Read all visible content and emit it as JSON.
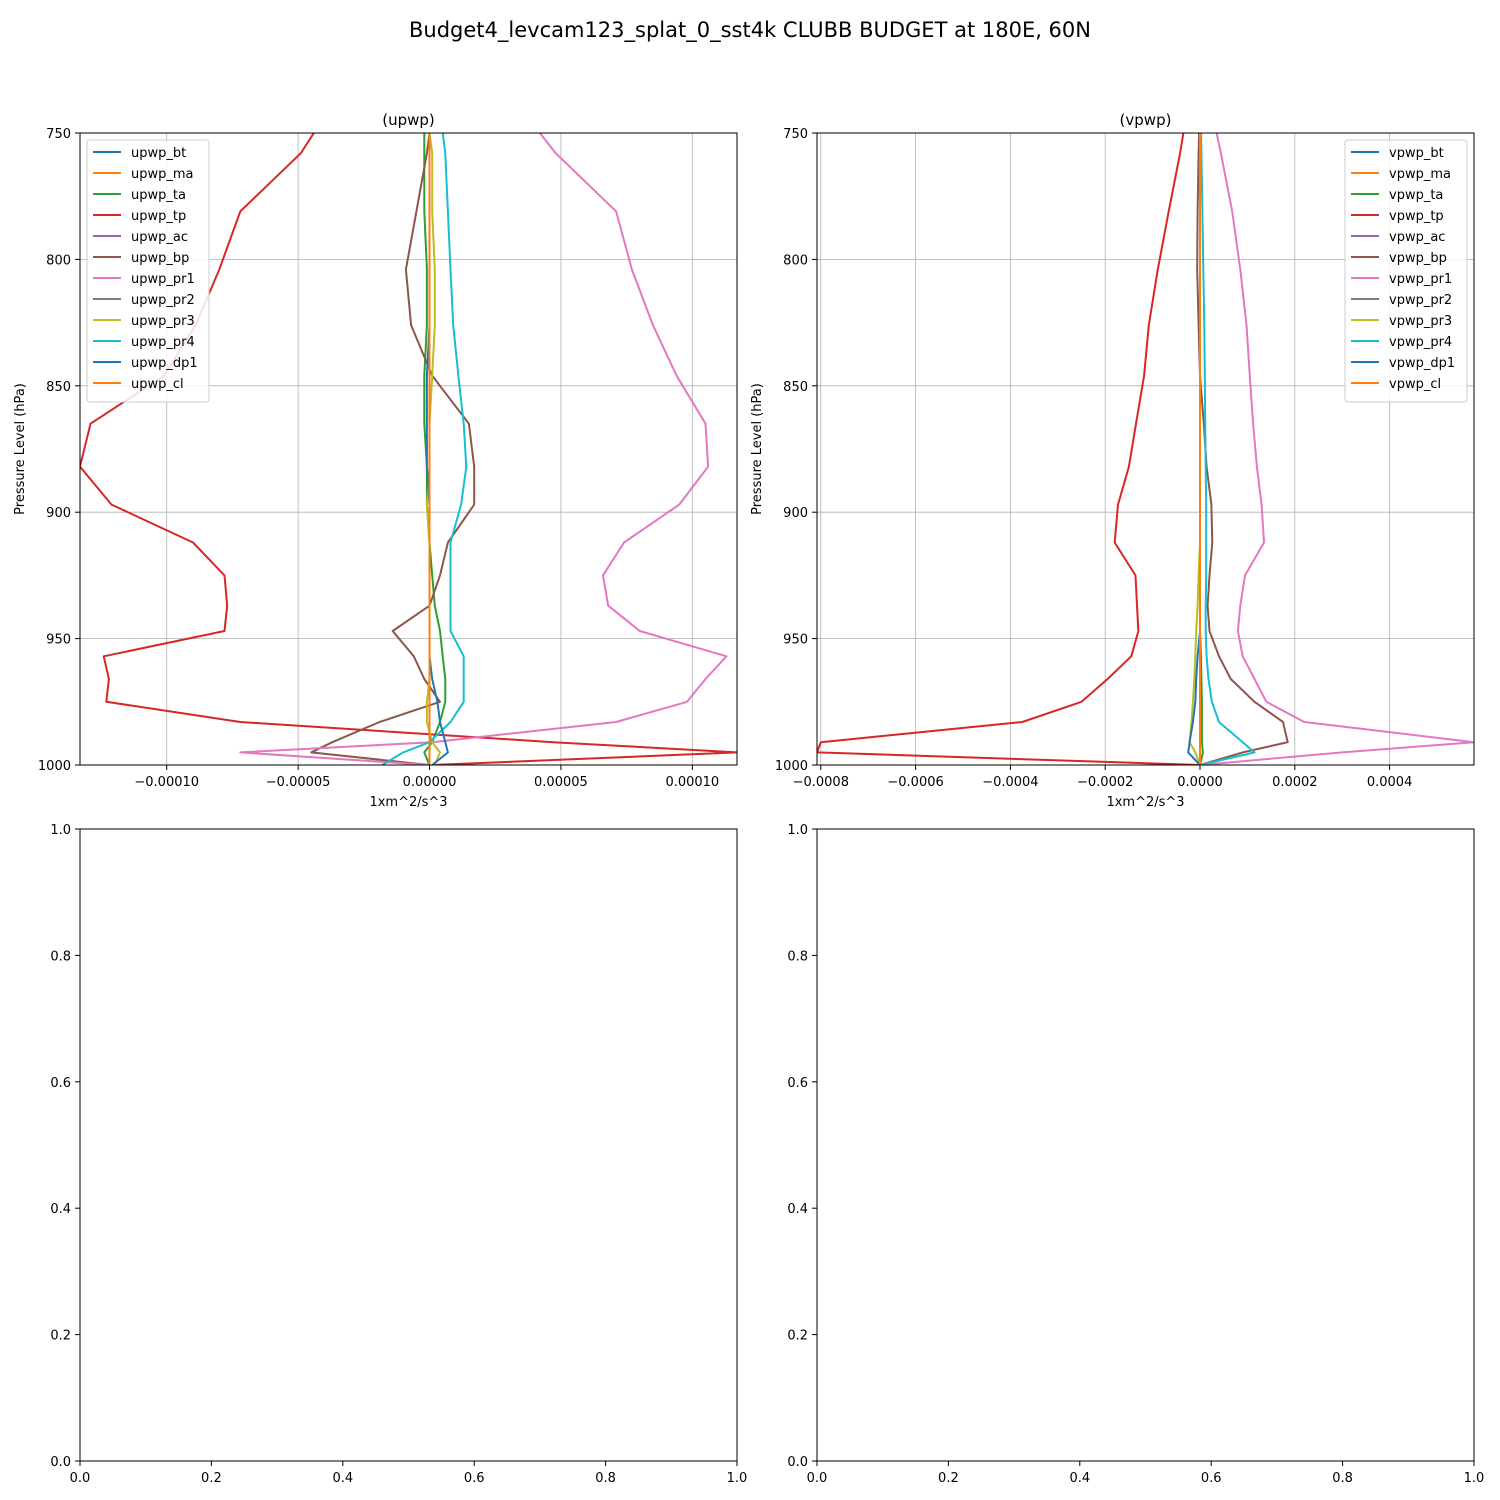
{
  "figure": {
    "suptitle": "Budget4_levcam123_splat_0_sst4k CLUBB BUDGET at 180E, 60N"
  },
  "chart_data": [
    {
      "type": "line",
      "title": "(upwp)",
      "xlabel": "1xm^2/s^3",
      "ylabel": "Pressure Level (hPa)",
      "xlim": [
        -0.000133,
        0.000117
      ],
      "ylim": [
        1000,
        750
      ],
      "xticks": [
        -0.0001,
        -5e-05,
        0,
        5e-05,
        0.0001
      ],
      "xtick_labels": [
        "−0.00010",
        "−0.00005",
        "0.00000",
        "0.00005",
        "0.00010"
      ],
      "yticks": [
        750,
        800,
        850,
        900,
        950,
        1000
      ],
      "ytick_labels": [
        "750",
        "800",
        "850",
        "900",
        "950",
        "1000"
      ],
      "grid": true,
      "legend_position": "upper-left",
      "levels": [
        750,
        758,
        781,
        804,
        826,
        846,
        865,
        882,
        897,
        912,
        925,
        937,
        947,
        957,
        966,
        975,
        983,
        991,
        995,
        1000
      ],
      "series": [
        {
          "name": "upwp_bt",
          "color": "#1f77b4",
          "values": [
            0,
            0,
            0,
            0,
            0,
            0,
            0,
            0,
            0,
            0,
            0,
            0,
            0,
            0,
            0,
            0,
            0,
            0,
            0,
            0
          ]
        },
        {
          "name": "upwp_ma",
          "color": "#ff7f0e",
          "values": [
            0,
            0,
            0,
            0,
            0,
            0,
            0,
            0,
            0,
            0,
            0,
            0,
            0,
            0,
            0,
            0,
            0,
            0,
            0,
            0
          ]
        },
        {
          "name": "upwp_ta",
          "color": "#2ca02c",
          "values": [
            -2e-06,
            -2e-06,
            -2e-06,
            -1e-06,
            -1e-06,
            -2e-06,
            -2e-06,
            -1e-06,
            -1e-06,
            0,
            1e-06,
            2e-06,
            4e-06,
            5e-06,
            6e-06,
            6e-06,
            4e-06,
            1e-06,
            -2e-06,
            0
          ]
        },
        {
          "name": "upwp_tp",
          "color": "#d62728",
          "values": [
            -4.4e-05,
            -4.9e-05,
            -7.2e-05,
            -8e-05,
            -8.9e-05,
            -0.000101,
            -0.000129,
            -0.000133,
            -0.000121,
            -9e-05,
            -7.8e-05,
            -7.7e-05,
            -7.8e-05,
            -0.000124,
            -0.000122,
            -0.000123,
            -7.2e-05,
            4.7e-05,
            0.000117,
            1e-06
          ]
        },
        {
          "name": "upwp_ac",
          "color": "#9467bd",
          "values": [
            0,
            0,
            0,
            0,
            0,
            0,
            0,
            0,
            0,
            0,
            0,
            0,
            0,
            0,
            0,
            0,
            0,
            0,
            0,
            0
          ]
        },
        {
          "name": "upwp_bp",
          "color": "#8c564b",
          "values": [
            0,
            -1e-06,
            -5e-06,
            -9e-06,
            -7e-06,
            1e-06,
            1.5e-05,
            1.7e-05,
            1.7e-05,
            7e-06,
            4e-06,
            0,
            -1.4e-05,
            -6e-06,
            -2e-06,
            4e-06,
            -1.9e-05,
            -3.7e-05,
            -4.5e-05,
            0
          ]
        },
        {
          "name": "upwp_pr1",
          "color": "#e377c2",
          "values": [
            4.2e-05,
            4.8e-05,
            7.1e-05,
            7.7e-05,
            8.5e-05,
            9.4e-05,
            0.000105,
            0.000106,
            9.5e-05,
            7.4e-05,
            6.6e-05,
            6.8e-05,
            8e-05,
            0.000113,
            0.000105,
            9.8e-05,
            7.1e-05,
            1e-06,
            -7.2e-05,
            0
          ]
        },
        {
          "name": "upwp_pr2",
          "color": "#7f7f7f",
          "values": [
            0,
            0,
            0,
            0,
            0,
            0,
            0,
            0,
            0,
            0,
            0,
            0,
            0,
            0,
            0,
            0,
            0,
            0,
            0,
            0
          ]
        },
        {
          "name": "upwp_pr3",
          "color": "#bcbd22",
          "values": [
            0,
            1e-06,
            1e-06,
            2e-06,
            2e-06,
            1e-06,
            0,
            0,
            -1e-06,
            0,
            0,
            0,
            0,
            0,
            0,
            -1e-06,
            -1e-06,
            1e-06,
            4e-06,
            2e-06
          ]
        },
        {
          "name": "upwp_pr4",
          "color": "#17becf",
          "values": [
            5e-06,
            6e-06,
            7e-06,
            8e-06,
            9e-06,
            1.1e-05,
            1.3e-05,
            1.4e-05,
            1.2e-05,
            8e-06,
            8e-06,
            8e-06,
            8e-06,
            1.3e-05,
            1.3e-05,
            1.3e-05,
            8e-06,
            0,
            -1e-05,
            -1.8e-05
          ]
        },
        {
          "name": "upwp_dp1",
          "color": "#1f77b4",
          "values": [
            0,
            0,
            0,
            0,
            0,
            -1e-06,
            -1e-06,
            -1e-06,
            0,
            0,
            0,
            0,
            0,
            0,
            1e-06,
            3e-06,
            4e-06,
            6e-06,
            7e-06,
            1e-06
          ]
        },
        {
          "name": "upwp_cl",
          "color": "#ff7f0e",
          "values": [
            0,
            0,
            0,
            0,
            0,
            0,
            0,
            0,
            0,
            0,
            0,
            0,
            0,
            0,
            0,
            0,
            0,
            0,
            0,
            0
          ]
        }
      ]
    },
    {
      "type": "line",
      "title": "(vpwp)",
      "xlabel": "1xm^2/s^3",
      "ylabel": "Pressure Level (hPa)",
      "xlim": [
        -0.000808,
        0.000578
      ],
      "ylim": [
        1000,
        750
      ],
      "xticks": [
        -0.0008,
        -0.0006,
        -0.0004,
        -0.0002,
        0,
        0.0002,
        0.0004
      ],
      "xtick_labels": [
        "−0.0008",
        "−0.0006",
        "−0.0004",
        "−0.0002",
        "0.0000",
        "0.0002",
        "0.0004"
      ],
      "yticks": [
        750,
        800,
        850,
        900,
        950,
        1000
      ],
      "ytick_labels": [
        "750",
        "800",
        "850",
        "900",
        "950",
        "1000"
      ],
      "grid": true,
      "legend_position": "upper-right",
      "levels": [
        750,
        758,
        781,
        804,
        826,
        846,
        865,
        882,
        897,
        912,
        925,
        937,
        947,
        957,
        966,
        975,
        983,
        991,
        995,
        1000
      ],
      "series": [
        {
          "name": "vpwp_bt",
          "color": "#1f77b4",
          "values": [
            0,
            0,
            0,
            0,
            0,
            0,
            0,
            0,
            0,
            0,
            0,
            0,
            0,
            0,
            0,
            0,
            0,
            0,
            0,
            0
          ]
        },
        {
          "name": "vpwp_ma",
          "color": "#ff7f0e",
          "values": [
            0,
            0,
            0,
            0,
            0,
            0,
            0,
            0,
            0,
            0,
            0,
            0,
            0,
            0,
            0,
            0,
            0,
            0,
            0,
            0
          ]
        },
        {
          "name": "vpwp_ta",
          "color": "#2ca02c",
          "values": [
            0,
            0,
            0,
            0,
            0,
            0,
            0,
            0,
            0,
            0,
            0,
            0,
            0,
            2e-06,
            3e-06,
            4e-06,
            4e-06,
            4e-06,
            6e-06,
            0
          ]
        },
        {
          "name": "vpwp_tp",
          "color": "#d62728",
          "values": [
            -3.5e-05,
            -4.2e-05,
            -6.6e-05,
            -8.9e-05,
            -0.000108,
            -0.000118,
            -0.000135,
            -0.00015,
            -0.000173,
            -0.00018,
            -0.000136,
            -0.000133,
            -0.00013,
            -0.000145,
            -0.000195,
            -0.00025,
            -0.000375,
            -0.0008,
            -0.000808,
            0
          ]
        },
        {
          "name": "vpwp_ac",
          "color": "#9467bd",
          "values": [
            0,
            0,
            0,
            0,
            0,
            0,
            0,
            0,
            0,
            0,
            0,
            0,
            0,
            0,
            0,
            0,
            0,
            0,
            0,
            0
          ]
        },
        {
          "name": "vpwp_bp",
          "color": "#8c564b",
          "values": [
            -2e-06,
            -3e-06,
            -5e-06,
            -6e-06,
            -3e-06,
            0,
            8e-06,
            1.4e-05,
            2.4e-05,
            2.6e-05,
            2e-05,
            1.6e-05,
            2e-05,
            4e-05,
            6.5e-05,
            0.000115,
            0.000175,
            0.000185,
            9e-05,
            0
          ]
        },
        {
          "name": "vpwp_pr1",
          "color": "#e377c2",
          "values": [
            3.5e-05,
            4.4e-05,
            6.8e-05,
            8.5e-05,
            9.8e-05,
            0.000105,
            0.000112,
            0.00012,
            0.00013,
            0.000135,
            9.5e-05,
            8.5e-05,
            8e-05,
            9e-05,
            0.000115,
            0.00014,
            0.00022,
            0.000578,
            0.0003,
            0
          ]
        },
        {
          "name": "vpwp_pr2",
          "color": "#7f7f7f",
          "values": [
            0,
            0,
            0,
            0,
            0,
            0,
            0,
            0,
            0,
            0,
            0,
            0,
            0,
            0,
            0,
            0,
            0,
            0,
            0,
            0
          ]
        },
        {
          "name": "vpwp_pr3",
          "color": "#bcbd22",
          "values": [
            0,
            0,
            0,
            0,
            0,
            0,
            0,
            0,
            0,
            0,
            -3e-06,
            -5e-06,
            -8e-06,
            -1e-05,
            -1.2e-05,
            -1.5e-05,
            -1.8e-05,
            -2.2e-05,
            -1e-05,
            0
          ]
        },
        {
          "name": "vpwp_pr4",
          "color": "#17becf",
          "values": [
            2e-06,
            3e-06,
            5e-06,
            7e-06,
            9e-06,
            1e-05,
            1.1e-05,
            1.2e-05,
            1.3e-05,
            1.3e-05,
            1.3e-05,
            1.2e-05,
            1.2e-05,
            1.4e-05,
            1.8e-05,
            2.5e-05,
            4e-05,
            9e-05,
            0.000115,
            0
          ]
        },
        {
          "name": "vpwp_dp1",
          "color": "#1f77b4",
          "values": [
            0,
            0,
            0,
            0,
            0,
            0,
            0,
            0,
            0,
            0,
            0,
            0,
            0,
            -5e-06,
            -8e-06,
            -1e-05,
            -1.5e-05,
            -2.2e-05,
            -2.5e-05,
            0
          ]
        },
        {
          "name": "vpwp_cl",
          "color": "#ff7f0e",
          "values": [
            0,
            0,
            0,
            0,
            0,
            0,
            0,
            0,
            0,
            0,
            0,
            0,
            0,
            0,
            0,
            0,
            0,
            0,
            0,
            0
          ]
        }
      ]
    },
    {
      "type": "line",
      "title": "",
      "xlim": [
        0,
        1
      ],
      "ylim": [
        0,
        1
      ],
      "xticks": [
        0,
        0.2,
        0.4,
        0.6,
        0.8,
        1.0
      ],
      "xtick_labels": [
        "0.0",
        "0.2",
        "0.4",
        "0.6",
        "0.8",
        "1.0"
      ],
      "yticks": [
        0,
        0.2,
        0.4,
        0.6,
        0.8,
        1.0
      ],
      "ytick_labels": [
        "0.0",
        "0.2",
        "0.4",
        "0.6",
        "0.8",
        "1.0"
      ],
      "grid": false,
      "series": []
    },
    {
      "type": "line",
      "title": "",
      "xlim": [
        0,
        1
      ],
      "ylim": [
        0,
        1
      ],
      "xticks": [
        0,
        0.2,
        0.4,
        0.6,
        0.8,
        1.0
      ],
      "xtick_labels": [
        "0.0",
        "0.2",
        "0.4",
        "0.6",
        "0.8",
        "1.0"
      ],
      "yticks": [
        0,
        0.2,
        0.4,
        0.6,
        0.8,
        1.0
      ],
      "ytick_labels": [
        "0.0",
        "0.2",
        "0.4",
        "0.6",
        "0.8",
        "1.0"
      ],
      "grid": false,
      "series": []
    }
  ]
}
